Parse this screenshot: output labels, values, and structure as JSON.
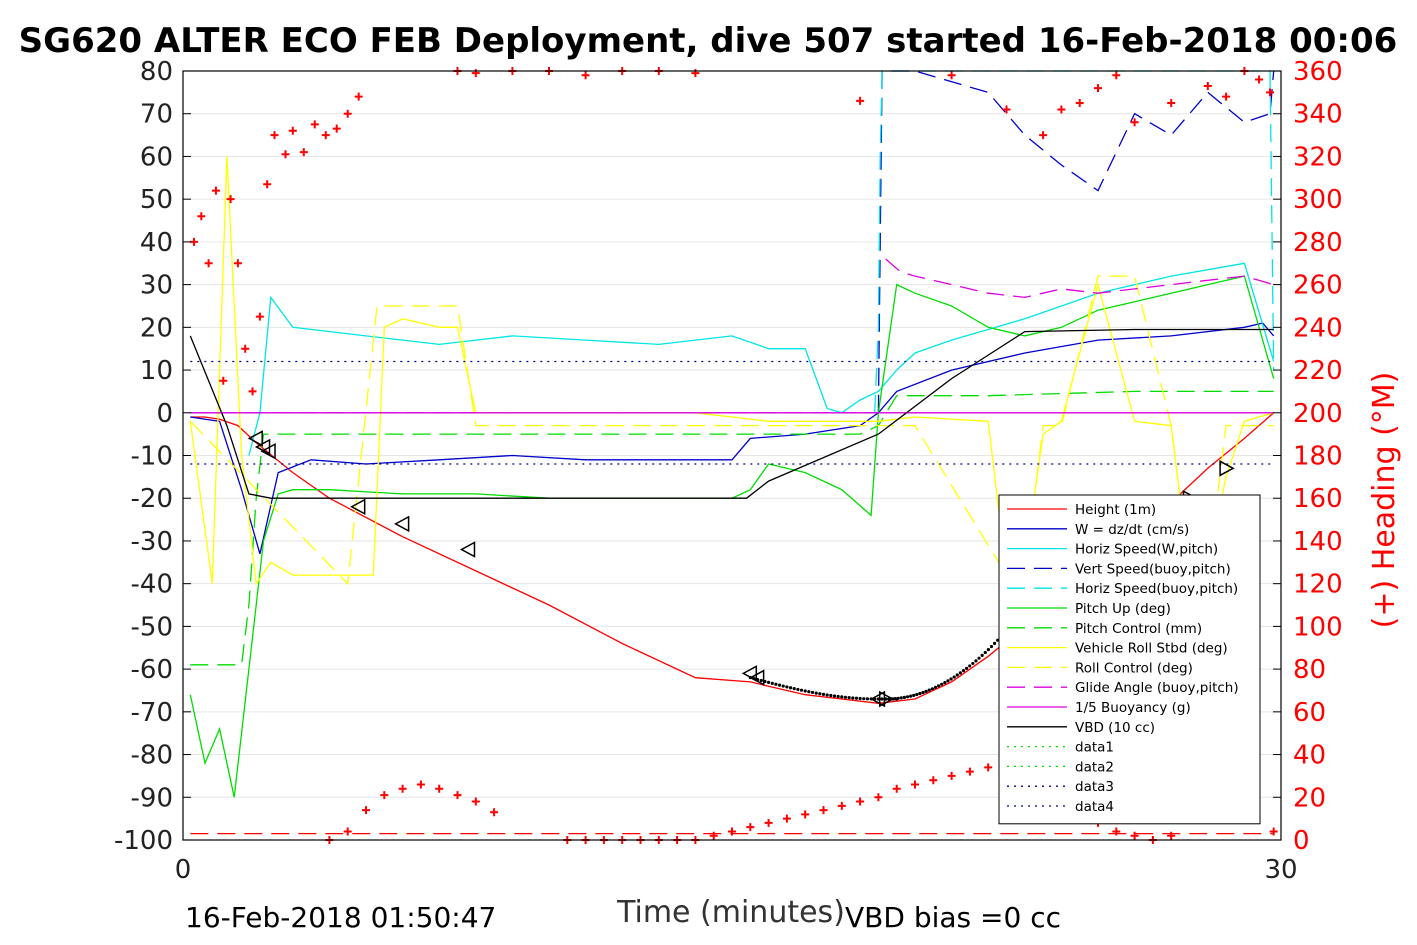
{
  "chart_data": {
    "type": "line",
    "title": "SG620 ALTER ECO FEB Deployment, dive 507 started 16-Feb-2018 00:06",
    "xlabel": "Time (minutes)",
    "ylabel_right": "(+) Heading (°M)",
    "xlim": [
      0,
      30
    ],
    "ylim": [
      -100,
      80
    ],
    "y2lim": [
      0,
      360
    ],
    "x_ticks": [
      "0",
      "30"
    ],
    "y_ticks": [
      "80",
      "70",
      "60",
      "50",
      "40",
      "30",
      "20",
      "10",
      "0",
      "-10",
      "-20",
      "-30",
      "-40",
      "-50",
      "-60",
      "-70",
      "-80",
      "-90",
      "-100"
    ],
    "y2_ticks": [
      "360",
      "340",
      "320",
      "300",
      "280",
      "260",
      "240",
      "220",
      "200",
      "180",
      "160",
      "140",
      "120",
      "100",
      "80",
      "60",
      "40",
      "20",
      "0"
    ],
    "footer_left": "16-Feb-2018 01:50:47",
    "footer_right": "VBD bias =0 cc",
    "grid": true,
    "legend_position": "lower-right",
    "colors": {
      "red": "#ff0000",
      "blue": "#0000cc",
      "cyan": "#00e5e5",
      "green": "#00dd00",
      "yellow": "#ffff00",
      "magenta": "#dd00dd",
      "black": "#000000",
      "dkblue": "#000088"
    },
    "series": [
      {
        "name": "Height (1m)",
        "color": "#ff0000",
        "dash": "solid",
        "x": [
          0.2,
          0.6,
          1.0,
          1.5,
          2.0,
          3.0,
          4.0,
          6.0,
          8.0,
          10.0,
          12.0,
          14.0,
          15.5,
          16.0,
          17.0,
          18.0,
          19.0,
          20.0,
          21.0,
          22.0,
          23.0,
          24.0,
          25.0,
          26.0,
          27.0,
          28.0,
          29.0,
          29.8
        ],
        "values": [
          -1,
          -1,
          -1.5,
          -3,
          -7,
          -14,
          -20,
          -29,
          -37,
          -45,
          -54,
          -62,
          -63,
          -64,
          -66,
          -67,
          -68,
          -67,
          -63,
          -57,
          -50,
          -43,
          -36,
          -29,
          -21,
          -13,
          -6,
          0
        ]
      },
      {
        "name": "W = dz/dt (cm/s)",
        "color": "#0000cc",
        "dash": "solid",
        "x": [
          0.2,
          1.0,
          1.6,
          2.1,
          2.6,
          3.5,
          5,
          7,
          9,
          11,
          13,
          15,
          15.5,
          17,
          18.5,
          19,
          19.5,
          21,
          23,
          25,
          27,
          29,
          29.5,
          29.8
        ],
        "values": [
          -1,
          -2,
          -18,
          -33,
          -14,
          -11,
          -12,
          -11,
          -10,
          -11,
          -11,
          -11,
          -6,
          -5,
          -3,
          0,
          5,
          10,
          14,
          17,
          18,
          20,
          21,
          18
        ]
      },
      {
        "name": "Horiz Speed(W,pitch)",
        "color": "#00e5e5",
        "dash": "solid",
        "x": [
          1.8,
          2.1,
          2.4,
          3,
          5,
          7,
          9,
          11,
          13,
          15,
          16,
          17,
          17.6,
          18,
          18.5,
          19,
          19.5,
          20,
          21,
          23,
          25,
          27,
          29,
          29.8
        ],
        "values": [
          -10,
          0,
          27,
          20,
          18,
          16,
          18,
          17,
          16,
          18,
          15,
          15,
          1,
          0,
          3,
          5,
          10,
          14,
          17,
          22,
          28,
          32,
          35,
          12
        ]
      },
      {
        "name": "Vert Speed(buoy,pitch)",
        "color": "#0000cc",
        "dash": "dashed",
        "x": [
          19.0,
          19.05,
          19.1,
          19.2,
          20,
          22,
          23,
          24,
          25,
          26,
          27,
          28,
          29,
          29.7,
          29.8
        ],
        "values": [
          0,
          40,
          80,
          80,
          80,
          75,
          65,
          58,
          52,
          70,
          65,
          75,
          68,
          70,
          80
        ]
      },
      {
        "name": "Horiz Speed(buoy,pitch)",
        "color": "#00e5e5",
        "dash": "dashed",
        "x": [
          18.9,
          19.0,
          19.05,
          19.1,
          29.7,
          29.8
        ],
        "values": [
          0,
          20,
          60,
          80,
          80,
          10
        ]
      },
      {
        "name": "Pitch Up (deg)",
        "color": "#00dd00",
        "dash": "solid",
        "x": [
          0.2,
          0.6,
          1.0,
          1.4,
          1.8,
          2.2,
          2.6,
          3.0,
          4,
          6,
          8,
          10,
          12,
          14,
          15,
          15.5,
          16,
          17,
          18,
          18.8,
          19,
          19.5,
          20,
          21,
          22,
          23,
          24,
          25,
          26,
          27,
          28,
          29,
          29.8
        ],
        "values": [
          -66,
          -82,
          -74,
          -90,
          -60,
          -30,
          -19,
          -18,
          -18,
          -19,
          -19,
          -20,
          -20,
          -20,
          -20,
          -18,
          -12,
          -14,
          -18,
          -24,
          0,
          30,
          28,
          25,
          20,
          18,
          20,
          24,
          26,
          28,
          30,
          32,
          8
        ]
      },
      {
        "name": "Pitch Control (mm)",
        "color": "#00dd00",
        "dash": "dashed",
        "x": [
          0.2,
          1.6,
          1.8,
          2.0,
          2.2,
          3,
          6,
          10,
          14,
          16,
          18.5,
          19.0,
          19.5,
          22,
          26,
          29.8
        ],
        "values": [
          -59,
          -59,
          -45,
          -20,
          -5,
          -5,
          -5,
          -5,
          -5,
          -5,
          -5,
          -3,
          4,
          4,
          5,
          5
        ]
      },
      {
        "name": "Vehicle Roll Stbd (deg)",
        "color": "#ffff00",
        "dash": "solid",
        "x": [
          0.2,
          0.8,
          1.2,
          1.6,
          2.0,
          2.4,
          3.0,
          4.5,
          5.2,
          5.5,
          6.0,
          7.0,
          7.5,
          8.0,
          10,
          14,
          16,
          19,
          20,
          22,
          22.5,
          23,
          23.5,
          24,
          25,
          26,
          27,
          27.5,
          28,
          28.5,
          29,
          29.8
        ],
        "values": [
          -2,
          -40,
          60,
          -10,
          -40,
          -35,
          -38,
          -38,
          -38,
          20,
          22,
          20,
          20,
          0,
          0,
          0,
          -2,
          -2,
          -1,
          -2,
          -38,
          -35,
          -5,
          -2,
          30,
          -2,
          -3,
          -38,
          -35,
          -15,
          -2,
          0
        ]
      },
      {
        "name": "Roll Control (deg)",
        "color": "#ffff00",
        "dash": "dashed",
        "x": [
          0.2,
          4.5,
          5.3,
          6,
          7.5,
          8,
          16,
          16.2,
          20,
          22.5,
          23,
          23.5,
          24,
          25,
          26,
          27,
          27.5,
          28,
          28.5,
          29.8
        ],
        "values": [
          -2,
          -40,
          25,
          25,
          25,
          -3,
          -3,
          -3,
          -3,
          -38,
          -38,
          -3,
          -3,
          32,
          32,
          -3,
          -38,
          -38,
          -3,
          -3
        ]
      },
      {
        "name": "Glide Angle (buoy,pitch)",
        "color": "#dd00dd",
        "dash": "dashed",
        "x": [
          19.2,
          19.6,
          20,
          21,
          22,
          23,
          24,
          25,
          26,
          27,
          28,
          29,
          29.8
        ],
        "values": [
          36,
          33,
          32,
          30,
          28,
          27,
          29,
          28,
          29,
          30,
          31,
          32,
          30
        ]
      },
      {
        "name": "1/5 Buoyancy (g)",
        "color": "#dd00dd",
        "dash": "solid",
        "x": [
          0.2,
          29.8
        ],
        "values": [
          0,
          0
        ]
      },
      {
        "name": "VBD (10 cc)",
        "color": "#000000",
        "dash": "solid",
        "x": [
          0.2,
          1.2,
          1.8,
          2.4,
          4,
          8,
          12,
          15.4,
          16,
          19,
          21,
          23,
          26,
          29.8
        ],
        "values": [
          18,
          -3,
          -19,
          -20,
          -20,
          -20,
          -20,
          -20,
          -16,
          -5,
          8,
          19,
          19.5,
          19.5
        ]
      },
      {
        "name": "data1",
        "color": "#00dd00",
        "dash": "dotted",
        "x": [],
        "values": []
      },
      {
        "name": "data2",
        "color": "#00dd00",
        "dash": "dotted",
        "x": [],
        "values": []
      },
      {
        "name": "data3",
        "color": "#000088",
        "dash": "dotted",
        "x": [
          0.2,
          29.8
        ],
        "values": [
          12,
          12
        ]
      },
      {
        "name": "data4",
        "color": "#000088",
        "dash": "dotted",
        "x": [
          0.2,
          29.8
        ],
        "values": [
          -12,
          -12
        ]
      }
    ],
    "magenta_ref_line": {
      "x": [
        0.2,
        19.0
      ],
      "values": [
        0,
        0
      ]
    },
    "heading_points": {
      "x": [
        0.3,
        0.5,
        0.7,
        0.9,
        1.1,
        1.3,
        1.5,
        1.7,
        1.9,
        2.1,
        2.3,
        2.5,
        2.8,
        3.0,
        3.3,
        3.6,
        3.9,
        4.2,
        4.5,
        4.8,
        7.5,
        8.0,
        9,
        10,
        11,
        12,
        13,
        14,
        18.5,
        21,
        22.5,
        23.5,
        24,
        24.5,
        25,
        25.5,
        26,
        27,
        28,
        28.5,
        29,
        29.4,
        29.7
      ],
      "values": [
        280,
        292,
        270,
        304,
        215,
        300,
        270,
        230,
        210,
        245,
        307,
        330,
        321,
        332,
        322,
        335,
        330,
        333,
        340,
        348,
        360,
        359,
        360,
        360,
        358,
        360,
        360,
        359,
        346,
        358,
        342,
        330,
        342,
        345,
        352,
        358,
        336,
        345,
        353,
        348,
        360,
        356,
        350
      ]
    },
    "heading_points_low": {
      "x": [
        4.0,
        4.5,
        5.0,
        5.5,
        6.0,
        6.5,
        7.0,
        7.5,
        8.0,
        8.5,
        10.5,
        11,
        11.5,
        12,
        12.5,
        13,
        13.5,
        14,
        14.5,
        15,
        15.5,
        16,
        16.5,
        17,
        17.5,
        18,
        18.5,
        19,
        19.5,
        20,
        20.5,
        21,
        21.5,
        22,
        22.5,
        23,
        23.5,
        24,
        24.5,
        25,
        25.5,
        26,
        26.5,
        27,
        27.5,
        28,
        28.5,
        29.8
      ],
      "values": [
        0,
        4,
        14,
        21,
        24,
        26,
        24,
        21,
        18,
        13,
        0,
        0,
        0,
        0,
        0,
        0,
        0,
        0,
        2,
        4,
        6,
        8,
        10,
        12,
        14,
        16,
        18,
        20,
        24,
        26,
        28,
        30,
        32,
        34,
        28,
        22,
        20,
        16,
        12,
        8,
        4,
        2,
        0,
        2,
        12,
        20,
        18,
        4
      ]
    },
    "heading_dashed_line": {
      "x": [
        0.2,
        29.8
      ],
      "values": [
        3,
        3
      ]
    },
    "triangle_markers": {
      "x": [
        2.0,
        2.2,
        2.35,
        4.8,
        6.0,
        7.8,
        15.5,
        15.7,
        19.0,
        19.2,
        22.5,
        23.5,
        25.0,
        26.5,
        27.5,
        28.5
      ],
      "values": [
        -6,
        -8,
        -9,
        -22,
        -26,
        -32,
        -61,
        -62,
        -67,
        -67,
        -50,
        -44,
        -37,
        -30,
        -20,
        -13
      ]
    }
  }
}
